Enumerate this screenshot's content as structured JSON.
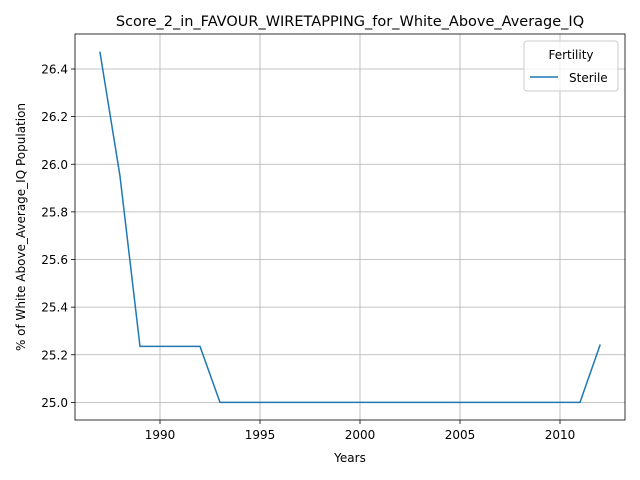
{
  "chart_data": {
    "type": "line",
    "title": "Score_2_in_FAVOUR_WIRETAPPING_for_White_Above_Average_IQ",
    "xlabel": "Years",
    "ylabel": "% of White Above_Average_IQ Population",
    "xlim": [
      1985.75,
      2013.25
    ],
    "ylim": [
      24.926,
      26.547
    ],
    "x_ticks": [
      1990,
      1995,
      2000,
      2005,
      2010
    ],
    "y_ticks": [
      25.0,
      25.2,
      25.4,
      25.6,
      25.8,
      26.0,
      26.2,
      26.4
    ],
    "x_tick_labels": [
      "1990",
      "1995",
      "2000",
      "2005",
      "2010"
    ],
    "y_tick_labels": [
      "25.0",
      "25.2",
      "25.4",
      "25.6",
      "25.8",
      "26.0",
      "26.2",
      "26.4"
    ],
    "grid": true,
    "legend": {
      "title": "Fertility",
      "placement": "top-right"
    },
    "series": [
      {
        "name": "Sterile",
        "color": "#1f77b4",
        "x": [
          1987,
          1988,
          1989,
          1990,
          1991,
          1992,
          1993,
          1994,
          1995,
          1996,
          1997,
          1998,
          1999,
          2000,
          2001,
          2002,
          2003,
          2004,
          2005,
          2006,
          2007,
          2008,
          2009,
          2010,
          2011,
          2012
        ],
        "y": [
          26.47,
          25.95,
          25.235,
          25.235,
          25.235,
          25.235,
          25.0,
          25.0,
          25.0,
          25.0,
          25.0,
          25.0,
          25.0,
          25.0,
          25.0,
          25.0,
          25.0,
          25.0,
          25.0,
          25.0,
          25.0,
          25.0,
          25.0,
          25.0,
          25.0,
          25.24
        ]
      }
    ]
  }
}
